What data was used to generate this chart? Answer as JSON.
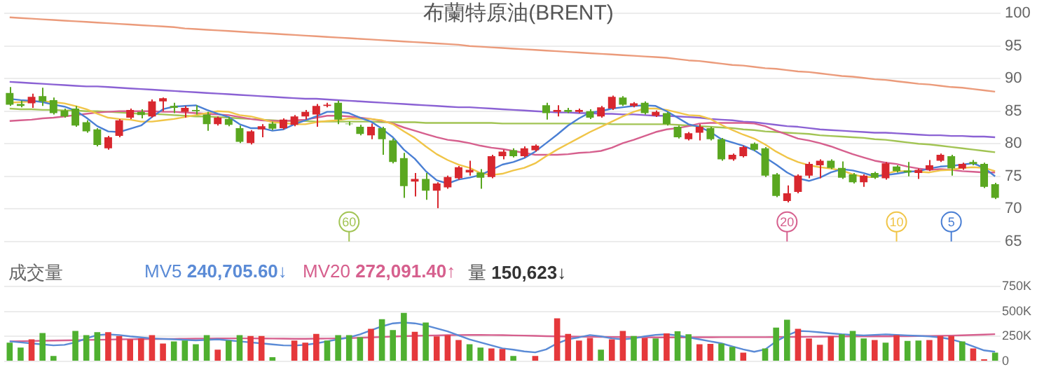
{
  "chart_data": [
    {
      "type": "candlestick",
      "title": "布蘭特原油(BRENT)",
      "categories": [
        null,
        null,
        null,
        null,
        null,
        null,
        null,
        null,
        null,
        null,
        null,
        null,
        null,
        null,
        null,
        null,
        null,
        null,
        null,
        null,
        null,
        null,
        null,
        null,
        null,
        null,
        null,
        null,
        null,
        null,
        null,
        null,
        null,
        null,
        null,
        null,
        null,
        null,
        null,
        null,
        null,
        null,
        null,
        null,
        null,
        null,
        null,
        null,
        null,
        null,
        null,
        null,
        null,
        null,
        null,
        null,
        null,
        null,
        null,
        null,
        null,
        null,
        null,
        null,
        null,
        null,
        null,
        null,
        null,
        null,
        null,
        null,
        null,
        null,
        null,
        null,
        null,
        null,
        null,
        null,
        null,
        null,
        null,
        null,
        null,
        null,
        null,
        null,
        null,
        null,
        null
      ],
      "ohlc": [
        [
          87.8,
          88.7,
          85.8,
          86.0
        ],
        [
          86.1,
          86.6,
          85.6,
          85.8
        ],
        [
          86.2,
          87.7,
          85.5,
          87.2
        ],
        [
          87.3,
          88.6,
          85.8,
          86.5
        ],
        [
          86.7,
          87.1,
          84.5,
          84.7
        ],
        [
          85.1,
          85.4,
          84.0,
          84.2
        ],
        [
          85.4,
          85.8,
          82.6,
          82.8
        ],
        [
          83.3,
          83.6,
          81.7,
          81.9
        ],
        [
          82.2,
          82.4,
          79.6,
          79.8
        ],
        [
          79.3,
          81.2,
          79.1,
          81.0
        ],
        [
          81.2,
          83.8,
          81.0,
          83.6
        ],
        [
          84.0,
          85.4,
          83.8,
          85.2
        ],
        [
          84.9,
          85.3,
          83.9,
          84.4
        ],
        [
          84.2,
          86.8,
          84.0,
          86.5
        ],
        [
          86.5,
          87.1,
          85.0,
          87.0
        ],
        [
          85.8,
          86.3,
          84.7,
          85.5
        ],
        [
          84.9,
          85.8,
          84.0,
          85.5
        ],
        [
          85.2,
          85.9,
          84.5,
          85.0
        ],
        [
          84.5,
          84.9,
          82.0,
          83.0
        ],
        [
          83.0,
          84.2,
          82.8,
          84.0
        ],
        [
          83.8,
          84.1,
          82.7,
          82.9
        ],
        [
          82.4,
          82.8,
          80.1,
          80.3
        ],
        [
          80.1,
          82.1,
          79.9,
          81.9
        ],
        [
          82.2,
          83.0,
          81.0,
          82.7
        ],
        [
          83.1,
          83.4,
          82.1,
          82.3
        ],
        [
          82.4,
          83.9,
          82.2,
          83.7
        ],
        [
          82.9,
          84.4,
          82.7,
          84.2
        ],
        [
          84.2,
          85.2,
          83.7,
          84.9
        ],
        [
          84.5,
          86.1,
          82.6,
          85.8
        ],
        [
          85.8,
          86.3,
          85.6,
          86.0
        ],
        [
          86.3,
          86.6,
          83.0,
          83.7
        ],
        [
          83.1,
          83.4,
          82.8,
          83.0
        ],
        [
          82.6,
          82.9,
          81.3,
          81.5
        ],
        [
          81.3,
          83.1,
          80.7,
          82.6
        ],
        [
          82.4,
          82.6,
          78.3,
          80.7
        ],
        [
          80.5,
          80.8,
          77.0,
          77.2
        ],
        [
          77.8,
          78.6,
          71.7,
          73.5
        ],
        [
          74.2,
          75.5,
          71.9,
          74.6
        ],
        [
          74.6,
          75.5,
          71.4,
          72.8
        ],
        [
          72.8,
          74.1,
          70.1,
          73.9
        ],
        [
          73.3,
          75.1,
          73.1,
          74.9
        ],
        [
          74.7,
          76.6,
          74.5,
          76.4
        ],
        [
          75.6,
          77.4,
          75.1,
          76.0
        ],
        [
          75.6,
          76.1,
          73.1,
          74.8
        ],
        [
          74.9,
          78.3,
          74.7,
          78.1
        ],
        [
          78.1,
          79.1,
          77.6,
          78.8
        ],
        [
          79.0,
          79.3,
          77.9,
          78.1
        ],
        [
          78.1,
          79.6,
          77.9,
          79.3
        ],
        [
          79.0,
          79.9,
          78.8,
          79.7
        ],
        [
          85.9,
          86.3,
          83.7,
          84.7
        ],
        [
          84.9,
          85.9,
          84.2,
          85.2
        ],
        [
          85.2,
          85.5,
          84.7,
          84.9
        ],
        [
          84.9,
          85.4,
          84.7,
          85.2
        ],
        [
          85.0,
          85.3,
          83.8,
          84.0
        ],
        [
          84.2,
          85.8,
          84.0,
          85.6
        ],
        [
          85.4,
          87.4,
          85.2,
          87.2
        ],
        [
          87.1,
          87.3,
          85.8,
          86.0
        ],
        [
          85.8,
          86.4,
          85.6,
          86.2
        ],
        [
          86.3,
          86.5,
          84.5,
          84.7
        ],
        [
          84.3,
          85.1,
          84.1,
          84.9
        ],
        [
          84.7,
          84.9,
          82.8,
          83.0
        ],
        [
          82.6,
          82.8,
          80.8,
          81.0
        ],
        [
          80.7,
          81.8,
          80.5,
          81.6
        ],
        [
          81.7,
          83.0,
          80.5,
          82.6
        ],
        [
          82.4,
          82.6,
          80.5,
          80.7
        ],
        [
          80.7,
          80.9,
          77.4,
          77.6
        ],
        [
          77.6,
          78.5,
          77.4,
          78.3
        ],
        [
          78.1,
          79.7,
          77.9,
          79.5
        ],
        [
          80.0,
          80.2,
          78.9,
          79.1
        ],
        [
          79.3,
          79.5,
          74.9,
          75.1
        ],
        [
          75.3,
          75.5,
          71.8,
          72.0
        ],
        [
          71.2,
          73.6,
          71.0,
          72.4
        ],
        [
          72.6,
          75.3,
          72.4,
          75.1
        ],
        [
          75.1,
          77.2,
          74.7,
          76.9
        ],
        [
          76.7,
          77.6,
          74.7,
          77.4
        ],
        [
          77.4,
          77.6,
          76.1,
          76.3
        ],
        [
          76.3,
          77.3,
          74.6,
          74.8
        ],
        [
          75.3,
          75.5,
          73.9,
          74.1
        ],
        [
          74.1,
          75.3,
          73.4,
          75.1
        ],
        [
          75.5,
          75.7,
          74.6,
          74.8
        ],
        [
          74.7,
          77.2,
          74.5,
          77.0
        ],
        [
          76.5,
          76.7,
          75.6,
          75.8
        ],
        [
          75.9,
          77.2,
          75.0,
          75.6
        ],
        [
          75.5,
          76.2,
          74.6,
          76.0
        ],
        [
          76.0,
          77.5,
          75.8,
          76.7
        ],
        [
          77.4,
          78.5,
          77.2,
          78.3
        ],
        [
          78.1,
          78.3,
          75.1,
          76.2
        ],
        [
          76.2,
          77.1,
          76.0,
          76.9
        ],
        [
          77.2,
          77.5,
          76.7,
          76.9
        ],
        [
          76.9,
          77.1,
          73.2,
          73.4
        ],
        [
          73.8,
          74.0,
          71.5,
          71.7
        ]
      ],
      "colors": [
        "#5aa720",
        "#5aa720",
        "#d8272e",
        "#5aa720",
        "#5aa720",
        "#5aa720",
        "#5aa720",
        "#5aa720",
        "#5aa720",
        "#d8272e",
        "#d8272e",
        "#d8272e",
        "#5aa720",
        "#d8272e",
        "#d8272e",
        "#5aa720",
        "#d8272e",
        "#5aa720",
        "#5aa720",
        "#d8272e",
        "#5aa720",
        "#5aa720",
        "#d8272e",
        "#d8272e",
        "#5aa720",
        "#d8272e",
        "#d8272e",
        "#d8272e",
        "#d8272e",
        "#d8272e",
        "#5aa720",
        "#5aa720",
        "#5aa720",
        "#d8272e",
        "#5aa720",
        "#5aa720",
        "#5aa720",
        "#d8272e",
        "#5aa720",
        "#d8272e",
        "#d8272e",
        "#d8272e",
        "#d8272e",
        "#5aa720",
        "#d8272e",
        "#d8272e",
        "#5aa720",
        "#d8272e",
        "#d8272e",
        "#5aa720",
        "#d8272e",
        "#5aa720",
        "#d8272e",
        "#5aa720",
        "#d8272e",
        "#d8272e",
        "#5aa720",
        "#d8272e",
        "#5aa720",
        "#d8272e",
        "#5aa720",
        "#5aa720",
        "#d8272e",
        "#d8272e",
        "#5aa720",
        "#5aa720",
        "#d8272e",
        "#d8272e",
        "#5aa720",
        "#5aa720",
        "#5aa720",
        "#d8272e",
        "#d8272e",
        "#d8272e",
        "#d8272e",
        "#5aa720",
        "#5aa720",
        "#5aa720",
        "#d8272e",
        "#5aa720",
        "#d8272e",
        "#5aa720",
        "#5aa720",
        "#d8272e",
        "#d8272e",
        "#d8272e",
        "#5aa720",
        "#d8272e",
        "#5aa720",
        "#5aa720",
        "#5aa720"
      ],
      "series": [
        {
          "type": "line",
          "color": "#4a7fd4",
          "values": [
            86.9,
            86.7,
            86.6,
            86.4,
            86.0,
            85.7,
            85.1,
            84.0,
            82.7,
            81.9,
            81.8,
            82.3,
            82.8,
            84.1,
            85.3,
            85.7,
            85.8,
            85.9,
            85.2,
            84.6,
            84.1,
            83.0,
            82.4,
            82.4,
            82.0,
            82.2,
            83.0,
            83.6,
            84.2,
            84.9,
            84.9,
            84.7,
            84.0,
            83.4,
            82.3,
            81.0,
            79.1,
            77.7,
            75.8,
            74.4,
            73.9,
            74.5,
            74.8,
            75.2,
            76.0,
            76.8,
            77.2,
            77.8,
            78.8,
            80.1,
            81.4,
            82.8,
            83.9,
            84.8,
            85.0,
            85.4,
            85.6,
            85.8,
            85.9,
            85.8,
            85.0,
            84.0,
            83.0,
            82.6,
            81.8,
            80.7,
            80.2,
            79.7,
            79.0,
            77.9,
            76.8,
            75.6,
            74.7,
            74.3,
            74.8,
            75.6,
            76.1,
            75.9,
            75.5,
            75.0,
            75.2,
            75.4,
            75.7,
            75.8,
            76.2,
            76.5,
            76.6,
            76.8,
            77.0,
            76.3,
            75.0
          ]
        },
        {
          "type": "line",
          "color": "#f0c548",
          "values": [
            86.3,
            86.4,
            86.5,
            86.5,
            86.4,
            86.2,
            85.8,
            85.3,
            84.6,
            84.0,
            83.8,
            83.7,
            83.4,
            83.4,
            83.6,
            83.8,
            84.1,
            84.4,
            84.7,
            85.0,
            84.9,
            84.4,
            84.2,
            83.8,
            83.3,
            83.2,
            83.0,
            83.0,
            83.3,
            83.5,
            83.6,
            83.9,
            83.8,
            83.8,
            83.6,
            83.0,
            81.9,
            80.9,
            79.6,
            78.4,
            77.5,
            76.8,
            76.3,
            75.5,
            75.2,
            75.4,
            75.9,
            76.3,
            77.0,
            78.1,
            79.1,
            80.0,
            80.9,
            81.8,
            82.6,
            83.4,
            84.2,
            84.9,
            85.4,
            85.4,
            85.2,
            84.8,
            84.4,
            84.3,
            83.8,
            82.9,
            82.1,
            81.4,
            80.8,
            79.9,
            78.8,
            77.9,
            77.2,
            76.7,
            76.4,
            76.2,
            75.9,
            75.3,
            74.9,
            74.9,
            75.4,
            75.8,
            75.8,
            75.7,
            75.6,
            75.9,
            76.0,
            76.3,
            76.4,
            76.3,
            75.8
          ]
        },
        {
          "type": "line",
          "color": "#d6608e",
          "values": [
            83.5,
            83.6,
            83.7,
            83.9,
            84.0,
            84.2,
            84.4,
            84.6,
            84.8,
            84.9,
            85.0,
            85.0,
            85.0,
            85.0,
            84.9,
            84.9,
            84.8,
            84.7,
            84.6,
            84.5,
            84.4,
            84.1,
            83.8,
            83.6,
            83.5,
            83.5,
            83.6,
            83.7,
            84.0,
            84.3,
            84.3,
            84.2,
            84.0,
            83.8,
            83.5,
            83.1,
            82.5,
            82.0,
            81.5,
            81.0,
            80.6,
            80.4,
            80.1,
            79.7,
            79.4,
            79.2,
            78.9,
            78.6,
            78.3,
            78.3,
            78.3,
            78.4,
            78.6,
            78.7,
            78.9,
            79.4,
            80.1,
            80.6,
            81.2,
            81.8,
            82.2,
            82.4,
            82.7,
            83.1,
            83.2,
            83.2,
            83.2,
            83.2,
            83.1,
            82.7,
            82.0,
            81.4,
            80.8,
            80.5,
            80.1,
            79.6,
            79.0,
            78.4,
            77.9,
            77.4,
            77.1,
            76.9,
            76.5,
            76.2,
            76.0,
            76.1,
            76.0,
            75.8,
            75.7,
            75.6,
            75.6
          ]
        },
        {
          "type": "line",
          "color": "#a2c454",
          "values": [
            85.4,
            85.3,
            85.3,
            85.2,
            85.2,
            85.1,
            85.1,
            85.0,
            85.0,
            84.9,
            84.8,
            84.7,
            84.6,
            84.6,
            84.5,
            84.4,
            84.3,
            84.2,
            84.2,
            84.1,
            84.0,
            83.9,
            83.8,
            83.7,
            83.6,
            83.5,
            83.5,
            83.5,
            83.4,
            83.4,
            83.4,
            83.4,
            83.4,
            83.4,
            83.3,
            83.3,
            83.3,
            83.3,
            83.2,
            83.2,
            83.2,
            83.2,
            83.2,
            83.2,
            83.2,
            83.1,
            83.1,
            83.1,
            83.1,
            83.1,
            83.1,
            83.1,
            83.1,
            83.1,
            83.1,
            83.0,
            83.0,
            83.0,
            83.0,
            83.0,
            83.0,
            82.9,
            82.8,
            82.7,
            82.6,
            82.5,
            82.4,
            82.2,
            82.1,
            81.9,
            81.8,
            81.7,
            81.6,
            81.5,
            81.3,
            81.2,
            81.1,
            81.0,
            80.9,
            80.7,
            80.6,
            80.4,
            80.2,
            80.0,
            79.9,
            79.7,
            79.5,
            79.3,
            79.1,
            78.9,
            78.7
          ]
        },
        {
          "type": "line",
          "color": "#8b62d4",
          "values": [
            89.5,
            89.4,
            89.3,
            89.2,
            89.1,
            89.0,
            88.9,
            88.8,
            88.8,
            88.7,
            88.6,
            88.5,
            88.4,
            88.3,
            88.2,
            88.1,
            88.0,
            87.9,
            87.8,
            87.7,
            87.6,
            87.5,
            87.4,
            87.3,
            87.2,
            87.1,
            87.0,
            86.9,
            86.9,
            86.8,
            86.7,
            86.6,
            86.5,
            86.4,
            86.3,
            86.2,
            86.1,
            86.0,
            85.9,
            85.8,
            85.7,
            85.6,
            85.6,
            85.5,
            85.4,
            85.3,
            85.2,
            85.1,
            85.0,
            84.9,
            84.8,
            84.8,
            84.7,
            84.7,
            84.6,
            84.6,
            84.5,
            84.5,
            84.4,
            84.3,
            84.3,
            84.2,
            84.1,
            84.0,
            83.8,
            83.7,
            83.6,
            83.4,
            83.3,
            83.1,
            82.9,
            82.7,
            82.6,
            82.4,
            82.2,
            82.1,
            82.0,
            81.9,
            81.8,
            81.7,
            81.7,
            81.6,
            81.5,
            81.4,
            81.3,
            81.3,
            81.2,
            81.2,
            81.1,
            81.1,
            81.0
          ]
        },
        {
          "type": "line",
          "color": "#eb9b7b",
          "values": [
            99.4,
            99.3,
            99.2,
            99.1,
            99.0,
            98.9,
            98.8,
            98.7,
            98.6,
            98.5,
            98.4,
            98.3,
            98.2,
            98.1,
            98.0,
            97.9,
            97.7,
            97.6,
            97.5,
            97.4,
            97.3,
            97.2,
            97.1,
            97.0,
            96.9,
            96.8,
            96.7,
            96.6,
            96.5,
            96.4,
            96.3,
            96.2,
            96.1,
            96.0,
            95.9,
            95.8,
            95.7,
            95.6,
            95.5,
            95.4,
            95.3,
            95.2,
            95.0,
            94.9,
            94.8,
            94.7,
            94.6,
            94.5,
            94.4,
            94.3,
            94.2,
            94.1,
            94.0,
            93.9,
            93.8,
            93.7,
            93.6,
            93.5,
            93.4,
            93.3,
            93.2,
            93.0,
            92.8,
            92.7,
            92.5,
            92.3,
            92.1,
            92.0,
            91.8,
            91.6,
            91.5,
            91.3,
            91.1,
            91.0,
            90.8,
            90.6,
            90.4,
            90.3,
            90.1,
            89.9,
            89.8,
            89.6,
            89.4,
            89.2,
            89.1,
            88.9,
            88.7,
            88.6,
            88.4,
            88.2,
            88.0
          ]
        }
      ],
      "ylim": [
        65,
        100
      ],
      "yticks": [
        65,
        70,
        75,
        80,
        85,
        90,
        95,
        100
      ],
      "grid": "y",
      "tick_labels": "y",
      "annotations": [
        "60",
        "20",
        "10",
        "5"
      ]
    },
    {
      "type": "bar",
      "title": "成交量",
      "categories": [
        null,
        null,
        null,
        null,
        null,
        null,
        null,
        null,
        null,
        null,
        null,
        null,
        null,
        null,
        null,
        null,
        null,
        null,
        null,
        null,
        null,
        null,
        null,
        null,
        null,
        null,
        null,
        null,
        null,
        null,
        null,
        null,
        null,
        null,
        null,
        null,
        null,
        null,
        null,
        null,
        null,
        null,
        null,
        null,
        null,
        null,
        null,
        null,
        null,
        null,
        null,
        null,
        null,
        null,
        null,
        null,
        null,
        null,
        null,
        null,
        null,
        null,
        null,
        null,
        null,
        null,
        null,
        null,
        null,
        null,
        null,
        null,
        null,
        null,
        null,
        null,
        null,
        null,
        null,
        null,
        null,
        null,
        null,
        null,
        null,
        null,
        null,
        null,
        null,
        null,
        null
      ],
      "series": [
        {
          "type": "bar",
          "colors": [
            "#4fb030",
            "#4fb030",
            "#e5383b",
            "#4fb030",
            "#4fb030",
            "#e5383b",
            "#4fb030",
            "#4fb030",
            "#4fb030",
            "#e5383b",
            "#e5383b",
            "#e5383b",
            "#e5383b",
            "#e5383b",
            "#e5383b",
            "#4fb030",
            "#4fb030",
            "#4fb030",
            "#4fb030",
            "#e5383b",
            "#4fb030",
            "#4fb030",
            "#e5383b",
            "#e5383b",
            "#4fb030",
            "#e5383b",
            "#e5383b",
            "#e5383b",
            "#e5383b",
            "#4fb030",
            "#4fb030",
            "#4fb030",
            "#4fb030",
            "#e5383b",
            "#4fb030",
            "#4fb030",
            "#4fb030",
            "#e5383b",
            "#4fb030",
            "#e5383b",
            "#e5383b",
            "#e5383b",
            "#4fb030",
            "#4fb030",
            "#e5383b",
            "#e5383b",
            "#4fb030",
            "#e5383b",
            "#e5383b",
            "#e5383b",
            "#e5383b",
            "#e5383b",
            "#e5383b",
            "#e5383b",
            "#4fb030",
            "#e5383b",
            "#e5383b",
            "#4fb030",
            "#e5383b",
            "#4fb030",
            "#e5383b",
            "#4fb030",
            "#4fb030",
            "#e5383b",
            "#e5383b",
            "#4fb030",
            "#4fb030",
            "#e5383b",
            "#e5383b",
            "#4fb030",
            "#4fb030",
            "#4fb030",
            "#e5383b",
            "#e5383b",
            "#e5383b",
            "#e5383b",
            "#4fb030",
            "#4fb030",
            "#4fb030",
            "#e5383b",
            "#4fb030",
            "#e5383b",
            "#4fb030",
            "#4fb030",
            "#e5383b",
            "#e5383b",
            "#e5383b",
            "#4fb030",
            "#e5383b",
            "#e5383b",
            "#4fb030"
          ],
          "values": [
            188,
            138,
            221,
            284,
            54,
            null,
            304,
            263,
            292,
            292,
            254,
            221,
            229,
            263,
            179,
            200,
            209,
            171,
            263,
            117,
            209,
            263,
            254,
            254,
            42,
            null,
            209,
            188,
            275,
            209,
            263,
            263,
            242,
            325,
            421,
            313,
            484,
            296,
            388,
            250,
            263,
            213,
            171,
            138,
            129,
            125,
            54,
            null,
            54,
            null,
            430,
            275,
            209,
            234,
            117,
            221,
            304,
            254,
            234,
            229,
            279,
            300,
            271,
            171,
            175,
            179,
            146,
            88,
            null,
            129,
            338,
            417,
            325,
            229,
            167,
            250,
            271,
            304,
            229,
            213,
            188,
            263,
            204,
            209,
            213,
            254,
            254,
            200,
            129,
            21,
            88
          ]
        },
        {
          "type": "line",
          "color": "#5b8bd6",
          "values": [
            200,
            190,
            180,
            170,
            160,
            165,
            190,
            230,
            263,
            270,
            263,
            250,
            240,
            230,
            225,
            220,
            215,
            210,
            215,
            220,
            210,
            200,
            190,
            180,
            170,
            160,
            158,
            165,
            180,
            200,
            220,
            240,
            270,
            310,
            350,
            380,
            388,
            380,
            360,
            330,
            300,
            260,
            220,
            190,
            160,
            130,
            117,
            100,
            90,
            120,
            180,
            221,
            240,
            263,
            250,
            230,
            220,
            230,
            250,
            265,
            271,
            260,
            240,
            220,
            200,
            180,
            150,
            120,
            96,
            120,
            200,
            260,
            304,
            300,
            290,
            280,
            271,
            265,
            260,
            265,
            270,
            265,
            260,
            255,
            250,
            240,
            220,
            190,
            150,
            110,
            96
          ]
        },
        {
          "type": "line",
          "color": "#d6608e",
          "values": [
            200,
            202,
            204,
            206,
            208,
            210,
            212,
            214,
            216,
            218,
            220,
            221,
            222,
            223,
            224,
            225,
            226,
            227,
            228,
            229,
            230,
            230,
            230,
            229,
            228,
            227,
            226,
            226,
            227,
            228,
            230,
            233,
            236,
            240,
            244,
            248,
            252,
            255,
            258,
            260,
            262,
            263,
            264,
            264,
            263,
            262,
            260,
            258,
            255,
            252,
            250,
            248,
            247,
            246,
            245,
            244,
            243,
            242,
            241,
            240,
            240,
            240,
            240,
            241,
            241,
            242,
            242,
            242,
            242,
            242,
            243,
            244,
            245,
            246,
            247,
            248,
            249,
            250,
            250,
            250,
            250,
            251,
            252,
            253,
            254,
            256,
            258,
            261,
            264,
            268,
            272
          ]
        }
      ],
      "ylim": [
        0,
        750
      ],
      "yticks": [
        0,
        {
          "value": 250,
          "label": "250K"
        },
        {
          "value": 500,
          "label": "500K"
        },
        {
          "value": 750,
          "label": "750K"
        }
      ],
      "grid": "y",
      "tick_labels": "y",
      "annotations": [
        "MV5 240,705.60↓",
        "MV20 272,091.40↑",
        "量 150,623↓"
      ]
    }
  ]
}
